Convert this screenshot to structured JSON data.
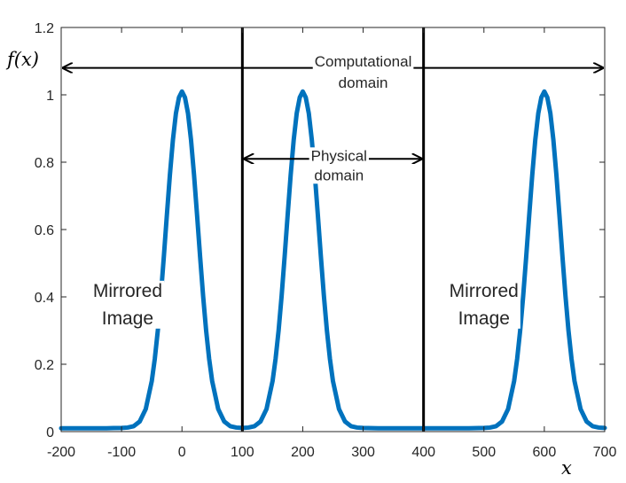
{
  "chart_data": {
    "type": "line",
    "title": "",
    "xlabel": "x",
    "ylabel": "f(x)",
    "xlim": [
      -200,
      700
    ],
    "ylim": [
      0,
      1.2
    ],
    "xticks": [
      -200,
      -100,
      0,
      100,
      200,
      300,
      400,
      500,
      600,
      700
    ],
    "xtick_labels": [
      "-200",
      "-100",
      "0",
      "100",
      "200",
      "300",
      "400",
      "500",
      "600",
      "700"
    ],
    "yticks": [
      0,
      0.2,
      0.4,
      0.6,
      0.8,
      1,
      1.2
    ],
    "ytick_labels": [
      "0",
      "0.2",
      "0.4",
      "0.6",
      "0.8",
      "1",
      "1.2"
    ],
    "grid": false,
    "series": [
      {
        "color": "#0072BD",
        "baseline": 0.01,
        "x": [
          -200,
          -175,
          -150,
          -125,
          -100,
          -90,
          -80,
          -70,
          -60,
          -50,
          -45,
          -40,
          -35,
          -30,
          -25,
          -20,
          -15,
          -10,
          -5,
          0,
          5,
          10,
          15,
          20,
          25,
          30,
          35,
          40,
          45,
          50,
          60,
          70,
          80,
          90,
          100,
          110,
          120,
          130,
          140,
          150,
          155,
          160,
          165,
          170,
          175,
          180,
          185,
          190,
          195,
          200,
          205,
          210,
          215,
          220,
          225,
          230,
          235,
          240,
          245,
          250,
          260,
          270,
          280,
          290,
          300,
          325,
          350,
          375,
          400,
          425,
          450,
          475,
          500,
          510,
          520,
          530,
          540,
          550,
          555,
          560,
          565,
          570,
          575,
          580,
          585,
          590,
          595,
          600,
          605,
          610,
          615,
          620,
          625,
          630,
          635,
          640,
          645,
          650,
          660,
          670,
          680,
          690,
          700
        ],
        "y": [
          0.01,
          0.01,
          0.01,
          0.01,
          0.011,
          0.012,
          0.016,
          0.03,
          0.067,
          0.15,
          0.216,
          0.3,
          0.403,
          0.52,
          0.643,
          0.762,
          0.866,
          0.945,
          0.992,
          1.01,
          0.992,
          0.945,
          0.866,
          0.762,
          0.643,
          0.52,
          0.403,
          0.3,
          0.216,
          0.15,
          0.067,
          0.03,
          0.016,
          0.012,
          0.011,
          0.012,
          0.016,
          0.03,
          0.067,
          0.15,
          0.216,
          0.3,
          0.403,
          0.52,
          0.643,
          0.762,
          0.866,
          0.945,
          0.992,
          1.01,
          0.992,
          0.945,
          0.866,
          0.762,
          0.643,
          0.52,
          0.403,
          0.3,
          0.216,
          0.15,
          0.067,
          0.03,
          0.016,
          0.012,
          0.011,
          0.01,
          0.01,
          0.01,
          0.01,
          0.01,
          0.01,
          0.01,
          0.011,
          0.012,
          0.016,
          0.03,
          0.067,
          0.15,
          0.216,
          0.3,
          0.403,
          0.52,
          0.643,
          0.762,
          0.866,
          0.945,
          0.992,
          1.01,
          0.992,
          0.945,
          0.866,
          0.762,
          0.643,
          0.52,
          0.403,
          0.3,
          0.216,
          0.15,
          0.067,
          0.03,
          0.016,
          0.012,
          0.011
        ]
      }
    ],
    "vlines": [
      100,
      400
    ],
    "arrows": [
      {
        "x1": -200,
        "x2": 700,
        "y": 1.08
      },
      {
        "x1": 100,
        "x2": 400,
        "y": 0.81
      }
    ],
    "annotations": [
      {
        "lines": [
          "Computational",
          "domain"
        ],
        "x": 300,
        "y": 1.1
      },
      {
        "lines": [
          "Physical",
          "domain"
        ],
        "x": 260,
        "y": 0.82
      },
      {
        "lines": [
          "Mirrored",
          "Image"
        ],
        "x": -90,
        "y": 0.42
      },
      {
        "lines": [
          "Mirrored",
          "Image"
        ],
        "x": 500,
        "y": 0.42
      }
    ]
  }
}
